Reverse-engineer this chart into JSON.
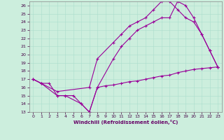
{
  "xlabel": "Windchill (Refroidissement éolien,°C)",
  "ylabel": "",
  "xlim": [
    -0.5,
    23.5
  ],
  "ylim": [
    13,
    26.5
  ],
  "yticks": [
    13,
    14,
    15,
    16,
    17,
    18,
    19,
    20,
    21,
    22,
    23,
    24,
    25,
    26
  ],
  "xticks": [
    0,
    1,
    2,
    3,
    4,
    5,
    6,
    7,
    8,
    9,
    10,
    11,
    12,
    13,
    14,
    15,
    16,
    17,
    18,
    19,
    20,
    21,
    22,
    23
  ],
  "bg_color": "#cceedd",
  "line_color": "#990099",
  "line1_x": [
    0,
    1,
    2,
    3,
    4,
    5,
    6,
    7,
    8,
    9,
    10,
    11,
    12,
    13,
    14,
    15,
    16,
    17,
    18,
    19,
    20,
    21,
    22,
    23
  ],
  "line1_y": [
    17.0,
    16.5,
    16.5,
    15.0,
    15.0,
    15.0,
    14.0,
    13.0,
    16.0,
    16.2,
    16.3,
    16.5,
    16.7,
    16.8,
    17.0,
    17.2,
    17.4,
    17.5,
    17.8,
    18.0,
    18.2,
    18.3,
    18.4,
    18.5
  ],
  "line2_x": [
    0,
    1,
    3,
    4,
    6,
    7,
    8,
    10,
    11,
    12,
    13,
    14,
    15,
    16,
    17,
    18,
    19,
    20,
    21,
    22,
    23
  ],
  "line2_y": [
    17.0,
    16.5,
    15.0,
    15.0,
    14.0,
    13.0,
    16.0,
    19.5,
    21.0,
    22.0,
    23.0,
    23.5,
    24.0,
    24.5,
    24.5,
    26.5,
    26.0,
    24.5,
    22.5,
    20.5,
    18.5
  ],
  "line3_x": [
    0,
    1,
    3,
    7,
    8,
    10,
    11,
    12,
    13,
    14,
    15,
    16,
    17,
    18,
    19,
    20,
    21,
    22,
    23
  ],
  "line3_y": [
    17.0,
    16.5,
    15.5,
    16.0,
    19.5,
    21.5,
    22.5,
    23.5,
    24.0,
    24.5,
    25.5,
    26.5,
    26.5,
    25.5,
    24.5,
    24.0,
    22.5,
    20.5,
    18.5
  ]
}
